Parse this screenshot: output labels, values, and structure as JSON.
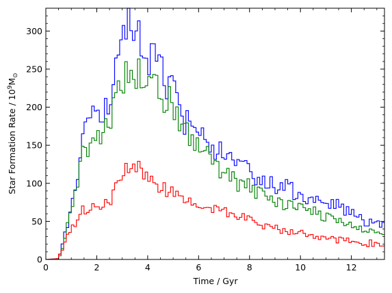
{
  "chart_data": {
    "type": "line",
    "step": true,
    "xlabel": "Time / Gyr",
    "ylabel": "Star Formation Rate / 10",
    "ylabel_sup": "9",
    "ylabel_unit": "M",
    "ylabel_sub": "⊙",
    "xlim": [
      0,
      13.3
    ],
    "ylim": [
      0,
      330
    ],
    "xticks": [
      "0",
      "2",
      "4",
      "6",
      "8",
      "10",
      "12"
    ],
    "yticks": [
      "0",
      "50",
      "100",
      "150",
      "200",
      "250",
      "300"
    ],
    "grid": false,
    "legend": "none",
    "series": [
      {
        "color": "#0000ff",
        "x": [
          0,
          0.5,
          1,
          1.5,
          2,
          2.5,
          3,
          3.25,
          3.5,
          4,
          4.5,
          5,
          5.5,
          6,
          6.5,
          7,
          7.5,
          8,
          8.5,
          9,
          9.5,
          10,
          10.5,
          11,
          11.5,
          12,
          12.5,
          13,
          13.3
        ],
        "y": [
          0,
          1,
          70,
          160,
          190,
          210,
          272,
          305,
          305,
          268,
          245,
          215,
          180,
          175,
          150,
          135,
          125,
          112,
          102,
          98,
          92,
          85,
          78,
          73,
          68,
          58,
          52,
          50,
          45
        ]
      },
      {
        "color": "#008000",
        "x": [
          0,
          0.5,
          1,
          1.5,
          2,
          2.5,
          3,
          3.5,
          4,
          4.5,
          5,
          5.5,
          6,
          6.5,
          7,
          7.5,
          8,
          8.5,
          9,
          9.5,
          10,
          10.5,
          11,
          11.5,
          12,
          12.5,
          13,
          13.3
        ],
        "y": [
          0,
          1,
          60,
          145,
          160,
          185,
          233,
          240,
          250,
          220,
          200,
          175,
          155,
          132,
          112,
          103,
          95,
          85,
          80,
          72,
          68,
          62,
          58,
          52,
          45,
          40,
          37,
          35
        ]
      },
      {
        "color": "#ff0000",
        "x": [
          0,
          0.5,
          1,
          1.5,
          2,
          2.5,
          3,
          3.5,
          4,
          4.5,
          5,
          5.5,
          6,
          6.5,
          7,
          7.5,
          8,
          8.5,
          9,
          9.5,
          10,
          10.5,
          11,
          11.5,
          12,
          12.5,
          13,
          13.3
        ],
        "y": [
          0,
          1,
          40,
          65,
          72,
          80,
          112,
          128,
          108,
          95,
          90,
          85,
          75,
          68,
          60,
          58,
          52,
          48,
          42,
          38,
          35,
          30,
          28,
          26,
          24,
          22,
          20,
          20
        ]
      }
    ]
  }
}
